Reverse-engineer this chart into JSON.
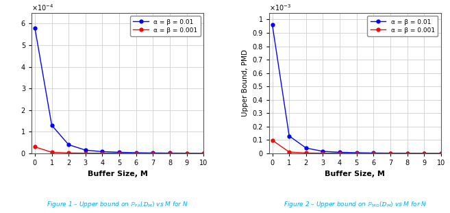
{
  "fig1": {
    "ylabel": "",
    "xlabel": "Buffer Size, M",
    "exponent": -4,
    "ylim": [
      0,
      0.00065
    ],
    "yticks": [
      0,
      0.0001,
      0.0002,
      0.0003,
      0.0004,
      0.0005,
      0.0006
    ],
    "yticklabels": [
      "0",
      "1",
      "2",
      "3",
      "4",
      "5",
      "6"
    ],
    "xlim": [
      -0.2,
      10
    ],
    "xticks": [
      0,
      1,
      2,
      3,
      4,
      5,
      6,
      7,
      8,
      9,
      10
    ],
    "blue_data": [
      0.00058,
      0.00013,
      4e-05,
      1.5e-05,
      8e-06,
      5e-06,
      3e-06,
      2e-06,
      1.5e-06,
      1e-06,
      8e-07
    ],
    "red_data": [
      3e-05,
      5e-06,
      2e-06,
      1e-06,
      6e-07,
      4e-07,
      3e-07,
      2e-07,
      1.5e-07,
      1e-07,
      8e-08
    ]
  },
  "fig2": {
    "ylabel": "Upper Bound, PMD",
    "xlabel": "Buffer Size, M",
    "exponent": -3,
    "ylim": [
      0,
      0.00105
    ],
    "yticks": [
      0,
      0.0001,
      0.0002,
      0.0003,
      0.0004,
      0.0005,
      0.0006,
      0.0007,
      0.0008,
      0.0009,
      0.001
    ],
    "yticklabels": [
      "0",
      "0.1",
      "0.2",
      "0.3",
      "0.4",
      "0.5",
      "0.6",
      "0.7",
      "0.8",
      "0.9",
      "1"
    ],
    "xlim": [
      -0.2,
      10
    ],
    "xticks": [
      0,
      1,
      2,
      3,
      4,
      5,
      6,
      7,
      8,
      9,
      10
    ],
    "blue_data": [
      0.00096,
      0.00013,
      4e-05,
      1.5e-05,
      8e-06,
      5e-06,
      3e-06,
      2e-06,
      1.5e-06,
      1e-06,
      8e-07
    ],
    "red_data": [
      9.8e-05,
      1e-05,
      3e-06,
      1.5e-06,
      8e-07,
      5e-07,
      3e-07,
      2e-07,
      1.5e-07,
      1e-07,
      1e-07
    ]
  },
  "legend_labels": [
    "α = β = 0.01",
    "α = β = 0.001"
  ],
  "bg_color": "#ffffff",
  "grid_color": "#d0d0d0",
  "caption_color": "#00aaff",
  "line_width": 1.0,
  "marker": "o",
  "marker_size": 3.5,
  "caption1": "Figure 1 – Upper bound on ℙFA(𝓟ₘ) vs M for N",
  "caption2": "Figure 2 – Upper bound on ℙMD(𝓟ₘ) vs M for N"
}
